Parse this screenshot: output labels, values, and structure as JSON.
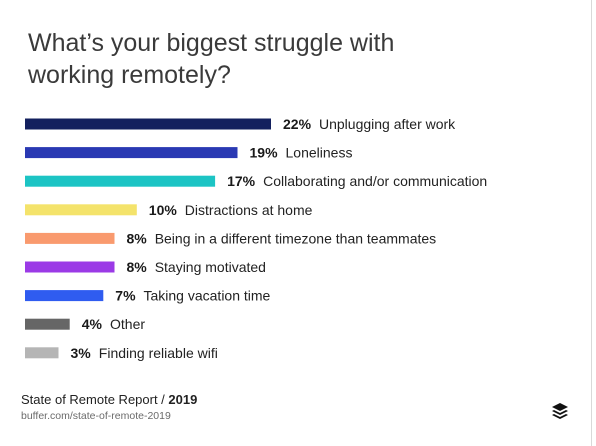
{
  "chart_data": {
    "type": "bar",
    "orientation": "horizontal",
    "title": "What’s your biggest struggle with working remotely?",
    "categories": [
      "Unplugging after work",
      "Loneliness",
      "Collaborating and/or communication",
      "Distractions at home",
      "Being in a different timezone than teammates",
      "Staying motivated",
      "Taking vacation time",
      "Other",
      "Finding reliable wifi"
    ],
    "values": [
      22,
      19,
      17,
      10,
      8,
      8,
      7,
      4,
      3
    ],
    "value_labels": [
      "22%",
      "19%",
      "17%",
      "10%",
      "8%",
      "8%",
      "7%",
      "4%",
      "3%"
    ],
    "colors": [
      "#13205e",
      "#2a39b3",
      "#1cc4c4",
      "#f4e36b",
      "#f99a6e",
      "#9b3ae6",
      "#2f5cf0",
      "#666666",
      "#b5b5b5"
    ],
    "xlim": [
      0,
      22
    ],
    "grid": false,
    "legend": "none"
  },
  "footer": {
    "source_prefix": "State of Remote Report / ",
    "source_year": "2019",
    "url": "buffer.com/state-of-remote-2019"
  },
  "logo": {
    "icon": "buffer-stack-icon"
  }
}
